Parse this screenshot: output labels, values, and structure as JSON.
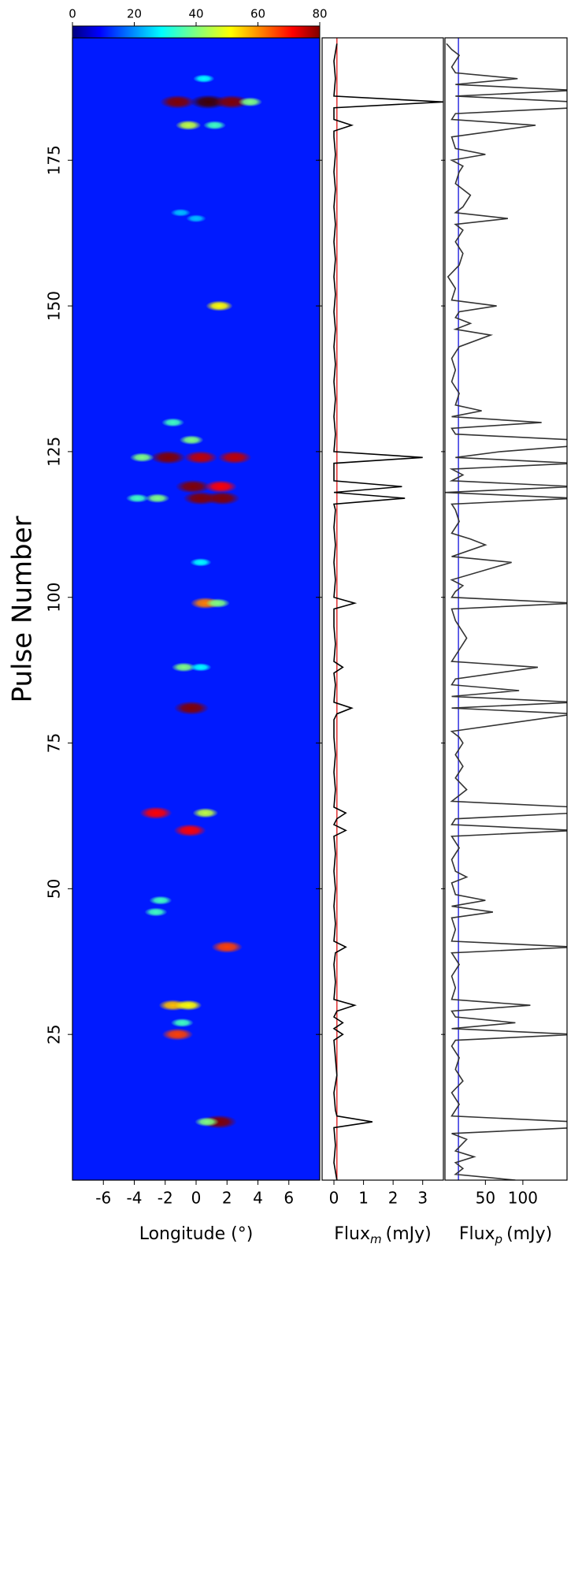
{
  "chart_data": [
    {
      "type": "heatmap",
      "ylabel": "Pulse Number",
      "xlabel": "Longitude (°)",
      "xlim": [
        -8,
        8
      ],
      "xticks": [
        -6,
        -4,
        -2,
        0,
        2,
        4,
        6
      ],
      "ylim": [
        0,
        196
      ],
      "yticks": [
        25,
        50,
        75,
        100,
        125,
        150,
        175
      ],
      "clim": [
        0,
        80
      ],
      "cticks": [
        0,
        20,
        40,
        60,
        80
      ],
      "background": 12,
      "spots": {
        "pulse": [
          189,
          185,
          185,
          185,
          185,
          181,
          181,
          166,
          165,
          150,
          130,
          127,
          124,
          124,
          124,
          124,
          119,
          119,
          117,
          117,
          117,
          117,
          106,
          99,
          99,
          88,
          88,
          81,
          63,
          63,
          60,
          48,
          46,
          40,
          30,
          30,
          27,
          25,
          10,
          10
        ],
        "longitude": [
          0.5,
          -1.2,
          0.8,
          2.3,
          3.5,
          -0.5,
          1.2,
          -1.0,
          0,
          1.5,
          -1.5,
          -0.3,
          -1.8,
          0.3,
          2.5,
          -3.5,
          -0.2,
          1.6,
          0.3,
          1.7,
          -2.5,
          -3.8,
          0.3,
          0.6,
          1.4,
          -0.8,
          0.3,
          -0.3,
          -2.6,
          0.6,
          -0.4,
          -2.3,
          -2.6,
          2.0,
          -1.5,
          -0.5,
          -0.9,
          -1.2,
          1.5,
          0.7
        ],
        "intensity": [
          30,
          80,
          85,
          80,
          40,
          45,
          35,
          25,
          25,
          50,
          35,
          40,
          80,
          75,
          75,
          40,
          80,
          70,
          80,
          80,
          40,
          35,
          30,
          60,
          40,
          40,
          30,
          80,
          70,
          45,
          70,
          35,
          35,
          65,
          55,
          50,
          35,
          65,
          80,
          40
        ]
      }
    },
    {
      "type": "line",
      "xlabel": {
        "text": "Flux",
        "sub": "m",
        "unit": "(mJy)"
      },
      "xlim": [
        -0.4,
        3.7
      ],
      "xticks": [
        0,
        1,
        2,
        3
      ],
      "ylim": [
        0,
        196
      ],
      "yticks": [
        25,
        50,
        75,
        100,
        125,
        150,
        175
      ],
      "color": "#000000",
      "reference_line": {
        "value": 0.1,
        "color": "#e03030"
      },
      "pulses": [
        0,
        3,
        6,
        9,
        10,
        11,
        12,
        15,
        18,
        21,
        24,
        25,
        26,
        27,
        28,
        29,
        30,
        31,
        34,
        37,
        39,
        40,
        41,
        44,
        47,
        50,
        53,
        56,
        59,
        60,
        61,
        62,
        63,
        64,
        67,
        70,
        73,
        76,
        79,
        80,
        81,
        82,
        85,
        87,
        88,
        89,
        92,
        95,
        98,
        99,
        100,
        103,
        106,
        109,
        112,
        115,
        116,
        117,
        118,
        119,
        120,
        123,
        124,
        125,
        128,
        131,
        134,
        137,
        140,
        143,
        146,
        149,
        152,
        155,
        158,
        161,
        164,
        167,
        170,
        173,
        176,
        179,
        180,
        181,
        182,
        184,
        185,
        186,
        189,
        192,
        195
      ],
      "values": [
        0.1,
        0,
        0.05,
        0,
        1.3,
        0.1,
        0.05,
        0,
        0.1,
        0.05,
        0,
        0.3,
        0,
        0.3,
        0,
        0.1,
        0.7,
        0,
        0.05,
        0,
        0.05,
        0.4,
        0,
        0.05,
        0,
        0.05,
        0,
        0.05,
        0,
        0.4,
        0,
        0.1,
        0.4,
        0,
        0.05,
        0,
        0.05,
        0,
        0,
        0.1,
        0.6,
        0,
        0.05,
        0,
        0.3,
        0,
        0.05,
        0,
        0,
        0.7,
        0,
        0.05,
        0,
        0.05,
        0,
        0.05,
        0,
        2.4,
        0,
        2.3,
        0,
        0,
        3.0,
        0,
        0.05,
        0,
        0.05,
        0,
        0.05,
        0,
        0.05,
        0,
        0.05,
        0,
        0.05,
        0,
        0.05,
        0,
        0.05,
        0,
        0.05,
        0,
        0,
        0.6,
        0,
        0,
        3.7,
        0,
        0.05,
        0,
        0.1
      ]
    },
    {
      "type": "line",
      "xlabel": {
        "text": "Flux",
        "sub": "p",
        "unit": "(mJy)"
      },
      "xlim": [
        -4,
        159
      ],
      "xticks": [
        50,
        100
      ],
      "ylim": [
        0,
        196
      ],
      "yticks": [
        25,
        50,
        75,
        100,
        125,
        150,
        175
      ],
      "color": "#333333",
      "reference_line": {
        "value": 14,
        "color": "#3030e0"
      },
      "pulses": [
        0,
        1,
        2,
        3,
        4,
        5,
        7,
        8,
        9,
        10,
        11,
        13,
        15,
        17,
        19,
        21,
        23,
        24,
        25,
        26,
        27,
        28,
        29,
        30,
        31,
        33,
        35,
        37,
        39,
        40,
        41,
        43,
        45,
        46,
        47,
        48,
        49,
        51,
        52,
        53,
        55,
        57,
        59,
        60,
        61,
        62,
        63,
        64,
        65,
        67,
        69,
        71,
        73,
        75,
        76,
        77,
        80,
        81,
        82,
        83,
        84,
        85,
        86,
        88,
        89,
        91,
        93,
        94,
        96,
        98,
        99,
        100,
        101,
        102,
        103,
        106,
        107,
        109,
        110,
        111,
        113,
        115,
        116,
        117,
        118,
        119,
        120,
        121,
        122,
        123,
        124,
        125,
        126,
        127,
        128,
        129,
        130,
        131,
        132,
        133,
        135,
        137,
        139,
        141,
        143,
        145,
        146,
        147,
        148,
        149,
        150,
        151,
        153,
        155,
        157,
        159,
        161,
        163,
        164,
        165,
        166,
        167,
        169,
        171,
        173,
        174,
        175,
        176,
        177,
        179,
        181,
        182,
        183,
        184,
        185,
        186,
        187,
        188,
        189,
        190,
        191,
        193,
        194,
        195
      ],
      "values": [
        90,
        10,
        20,
        10,
        35,
        10,
        25,
        5,
        170,
        170,
        5,
        15,
        5,
        20,
        10,
        15,
        5,
        10,
        170,
        5,
        90,
        10,
        5,
        110,
        5,
        10,
        5,
        15,
        5,
        170,
        5,
        10,
        5,
        60,
        5,
        50,
        10,
        5,
        25,
        10,
        5,
        15,
        5,
        170,
        5,
        10,
        170,
        170,
        5,
        25,
        10,
        20,
        10,
        20,
        15,
        5,
        170,
        5,
        170,
        5,
        95,
        5,
        10,
        120,
        5,
        15,
        25,
        20,
        10,
        5,
        170,
        5,
        10,
        20,
        5,
        85,
        5,
        50,
        30,
        5,
        15,
        10,
        5,
        170,
        -4,
        170,
        5,
        20,
        5,
        170,
        10,
        70,
        170,
        170,
        10,
        5,
        125,
        5,
        45,
        10,
        15,
        5,
        10,
        5,
        15,
        57,
        10,
        30,
        10,
        15,
        65,
        5,
        10,
        0,
        15,
        20,
        10,
        20,
        10,
        80,
        10,
        20,
        30,
        10,
        15,
        20,
        5,
        50,
        10,
        5,
        117,
        5,
        10,
        170,
        170,
        10,
        170,
        10,
        93,
        10,
        5,
        15,
        5,
        -2
      ]
    }
  ]
}
